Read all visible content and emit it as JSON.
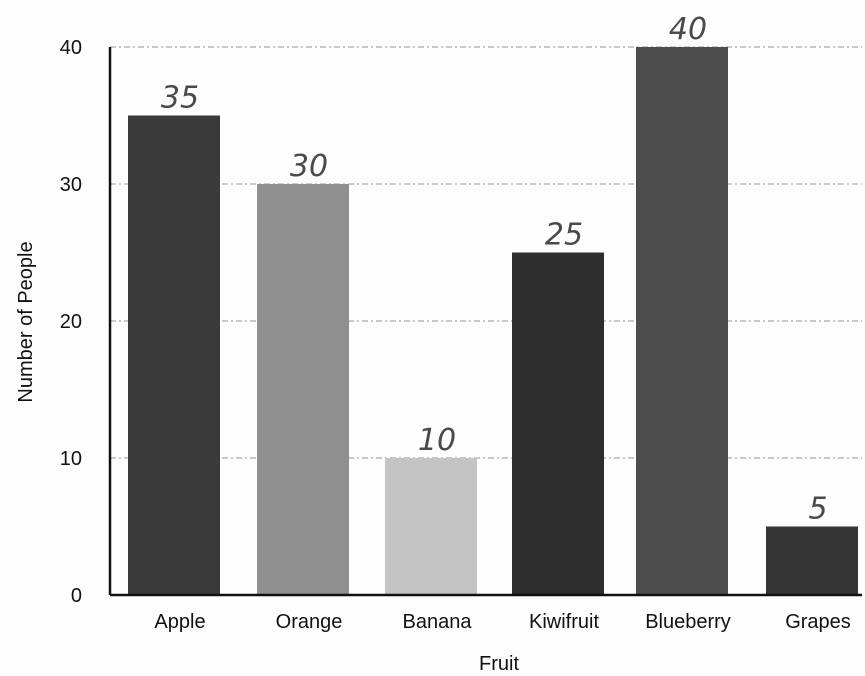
{
  "chart_data": {
    "type": "bar",
    "title": "",
    "xlabel": "Fruit",
    "ylabel": "Number of People",
    "categories": [
      "Apple",
      "Orange",
      "Banana",
      "Kiwifruit",
      "Blueberry",
      "Grapes"
    ],
    "values": [
      35,
      30,
      10,
      25,
      40,
      5
    ],
    "data_labels": [
      "35",
      "30",
      "10",
      "25",
      "40",
      "5"
    ],
    "colors": [
      "#3a3a3a",
      "#8f8f8f",
      "#c4c4c4",
      "#2e2e2e",
      "#4d4d4d",
      "#353535"
    ],
    "ylim": [
      0,
      40
    ],
    "yticks": [
      "0",
      "10",
      "20",
      "30",
      "40"
    ],
    "grid": true,
    "legend": "none"
  }
}
